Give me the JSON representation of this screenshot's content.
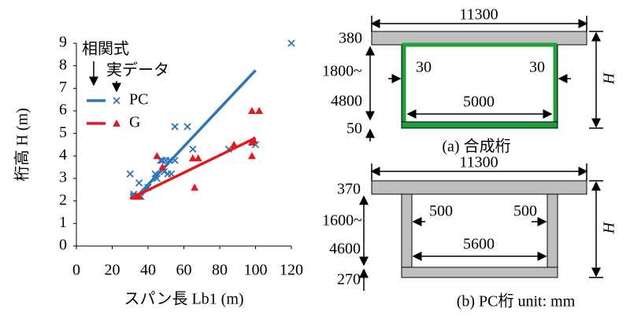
{
  "chart_data": {
    "type": "scatter",
    "xlabel": "スパン長 Lb1 (m)",
    "ylabel": "桁高 H (m)",
    "xlim": [
      0,
      120
    ],
    "xticks": [
      0,
      20,
      40,
      60,
      80,
      100,
      120
    ],
    "ylim": [
      0,
      9
    ],
    "yticks": [
      0,
      1,
      2,
      3,
      4,
      5,
      6,
      7,
      8,
      9
    ],
    "legend_headers": [
      "相関式",
      "実データ"
    ],
    "series": [
      {
        "name": "PC",
        "color": "#2e75b6",
        "marker": "x",
        "x": [
          30,
          32,
          34,
          35,
          36,
          40,
          44,
          45,
          47,
          48,
          49,
          50,
          51,
          52,
          53,
          55,
          55,
          62,
          65,
          85,
          100,
          120
        ],
        "values": [
          3.2,
          2.3,
          2.2,
          2.8,
          2.2,
          2.6,
          3.2,
          3.0,
          3.8,
          3.8,
          3.3,
          3.8,
          3.2,
          3.8,
          3.2,
          3.8,
          5.3,
          5.3,
          4.3,
          4.3,
          4.5,
          9.0
        ],
        "fit": {
          "x": [
            30,
            35,
            100
          ],
          "values": [
            2.3,
            2.3,
            7.8
          ]
        }
      },
      {
        "name": "G",
        "color": "#e31a1c",
        "marker": "triangle",
        "x": [
          33,
          35,
          45,
          48,
          65,
          66,
          68,
          88,
          98,
          98,
          98,
          99,
          102
        ],
        "values": [
          2.2,
          2.2,
          4.0,
          3.5,
          3.9,
          2.6,
          3.9,
          4.5,
          6.0,
          4.6,
          4.0,
          4.7,
          6.0
        ],
        "fit": {
          "x": [
            30,
            100
          ],
          "values": [
            2.1,
            4.8
          ]
        }
      }
    ]
  },
  "diagrams": [
    {
      "width": "11300",
      "top": "380",
      "depth_from": "1800~",
      "depth_to": "4800",
      "bottom": "50",
      "web_left": "30",
      "web_right": "30",
      "inner": "5000",
      "height": "H",
      "caption": "(a) 合成桁"
    },
    {
      "width": "11300",
      "top": "370",
      "depth_from": "1600~",
      "depth_to": "4600",
      "bottom": "270",
      "web_left": "500",
      "web_right": "500",
      "inner": "5600",
      "height": "H",
      "caption": "(b) PC桁 unit: mm"
    }
  ]
}
